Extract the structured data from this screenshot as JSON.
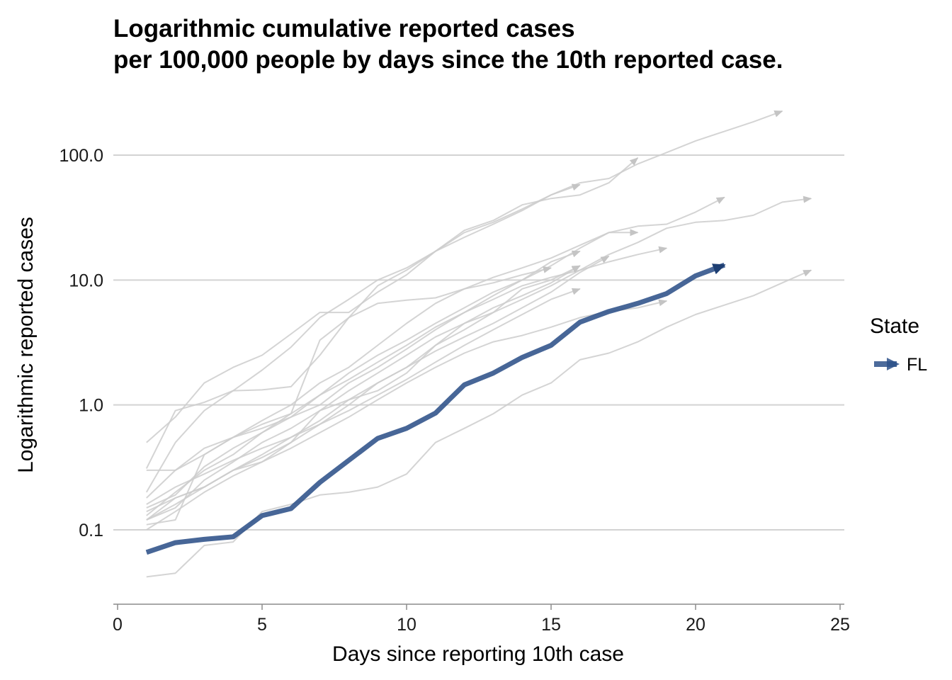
{
  "chart_data": {
    "type": "line",
    "title_lines": [
      "Logarithmic cumulative reported cases",
      "per 100,000 people by days since the 10th reported case."
    ],
    "xlabel": "Days since reporting 10th case",
    "ylabel": "Logarithmic reported cases",
    "x_scale": "linear",
    "y_scale": "log10",
    "xlim": [
      0,
      25
    ],
    "ylim": [
      0.03,
      250
    ],
    "x_ticks": [
      0,
      5,
      10,
      15,
      20,
      25
    ],
    "x_tick_labels": [
      "0",
      "5",
      "10",
      "15",
      "20",
      "25"
    ],
    "y_ticks": [
      0.1,
      1,
      10,
      100
    ],
    "y_tick_labels": [
      "0.1",
      "1.0",
      "10.0",
      "100.0"
    ],
    "grid": "horizontal major lines only",
    "legend": {
      "title": "State",
      "position": "right",
      "entries": [
        "FL"
      ]
    },
    "highlight_color": "#2d5189",
    "background_series_color": "#cccccc",
    "series": [
      {
        "name": "FL",
        "highlight": true,
        "x": [
          1,
          2,
          3,
          4,
          5,
          6,
          7,
          8,
          9,
          10,
          11,
          12,
          13,
          14,
          15,
          16,
          17,
          18,
          19,
          20,
          21
        ],
        "y": [
          0.066,
          0.079,
          0.084,
          0.088,
          0.13,
          0.148,
          0.24,
          0.36,
          0.54,
          0.65,
          0.86,
          1.45,
          1.8,
          2.4,
          3.0,
          4.6,
          5.6,
          6.5,
          7.8,
          10.8,
          13.2
        ]
      },
      {
        "highlight": false,
        "x": [
          1,
          2,
          3,
          4,
          5,
          6,
          7,
          8,
          9,
          10,
          11,
          12,
          13,
          14,
          15,
          16,
          17,
          18,
          19,
          20,
          21,
          22,
          23
        ],
        "y": [
          0.31,
          0.9,
          1.05,
          1.3,
          1.32,
          1.4,
          2.5,
          5.0,
          9.0,
          12.0,
          17.0,
          24.0,
          29.0,
          37.0,
          48.0,
          60.0,
          65.0,
          85.0,
          105.0,
          130.0,
          155.0,
          185.0,
          225.0
        ]
      },
      {
        "highlight": false,
        "x": [
          1,
          2,
          3,
          4,
          5,
          6,
          7,
          8,
          9,
          10,
          11,
          12,
          13,
          14,
          15,
          16,
          17,
          18
        ],
        "y": [
          0.2,
          0.5,
          0.9,
          1.3,
          1.9,
          2.9,
          5.0,
          7.0,
          10.0,
          12.5,
          17.0,
          25.0,
          30.0,
          40.0,
          45.0,
          48.0,
          60.0,
          95.0
        ]
      },
      {
        "highlight": false,
        "x": [
          1,
          2,
          3,
          4,
          5,
          6,
          7,
          8,
          9,
          10,
          11,
          12,
          13,
          14,
          15,
          16
        ],
        "y": [
          0.5,
          0.8,
          1.5,
          2.0,
          2.5,
          3.7,
          5.5,
          5.5,
          8.0,
          11.0,
          17.0,
          22.0,
          28.0,
          36.0,
          48.0,
          58.0
        ]
      },
      {
        "highlight": false,
        "x": [
          1,
          2,
          3,
          4,
          5,
          6,
          7,
          8,
          9,
          10,
          11,
          12,
          13,
          14,
          15,
          16,
          17,
          18,
          19,
          20,
          21,
          22,
          23,
          24
        ],
        "y": [
          0.12,
          0.18,
          0.22,
          0.3,
          0.38,
          0.5,
          0.7,
          1.0,
          1.5,
          2.0,
          3.0,
          4.0,
          5.5,
          7.0,
          9.0,
          12.0,
          16.0,
          20.0,
          26.0,
          29.0,
          30.0,
          33.0,
          42.0,
          45.0
        ]
      },
      {
        "highlight": false,
        "x": [
          1,
          2,
          3,
          4,
          5,
          6,
          7,
          8,
          9,
          10,
          11,
          12,
          13,
          14,
          15,
          16,
          17,
          18,
          19,
          20,
          21
        ],
        "y": [
          0.13,
          0.2,
          0.3,
          0.4,
          0.6,
          0.8,
          1.2,
          1.8,
          2.5,
          3.3,
          4.5,
          6.0,
          8.0,
          10.0,
          13.0,
          18.0,
          24.0,
          27.0,
          28.0,
          35.0,
          46.0
        ]
      },
      {
        "highlight": false,
        "x": [
          1,
          2,
          3,
          4,
          5,
          6,
          7,
          8,
          9,
          10,
          11,
          12,
          13,
          14,
          15,
          16,
          17,
          18
        ],
        "y": [
          0.3,
          0.3,
          0.4,
          0.55,
          0.75,
          1.0,
          1.5,
          2.0,
          3.0,
          4.5,
          6.5,
          8.5,
          10.5,
          12.5,
          15.0,
          19.0,
          24.0,
          24.0
        ]
      },
      {
        "highlight": false,
        "x": [
          1,
          2,
          3,
          4,
          5,
          6,
          7,
          8,
          9,
          10,
          11,
          12,
          13,
          14,
          15,
          16,
          17,
          18,
          19
        ],
        "y": [
          0.15,
          0.19,
          0.32,
          0.45,
          0.6,
          0.85,
          1.2,
          1.6,
          2.2,
          3.0,
          4.2,
          5.5,
          7.0,
          9.0,
          10.5,
          12.0,
          14.0,
          16.0,
          18.0
        ]
      },
      {
        "highlight": false,
        "x": [
          1,
          2,
          3,
          4,
          5,
          6,
          7,
          8,
          9,
          10,
          11,
          12,
          13,
          14,
          15,
          16
        ],
        "y": [
          0.18,
          0.3,
          0.45,
          0.55,
          0.65,
          0.8,
          1.0,
          1.5,
          2.0,
          2.8,
          4.0,
          5.5,
          7.5,
          10.0,
          14.0,
          17.0
        ]
      },
      {
        "highlight": false,
        "x": [
          1,
          2,
          3,
          4,
          5,
          6,
          7,
          8,
          9,
          10,
          11,
          12,
          13,
          14,
          15,
          16
        ],
        "y": [
          0.12,
          0.15,
          0.25,
          0.35,
          0.5,
          0.65,
          0.9,
          1.3,
          1.8,
          2.5,
          3.5,
          4.5,
          6.0,
          7.5,
          9.5,
          13.0
        ]
      },
      {
        "highlight": false,
        "x": [
          1,
          2,
          3,
          4,
          5,
          6,
          7,
          8,
          9,
          10,
          11,
          12,
          13,
          14,
          15,
          16
        ],
        "y": [
          0.16,
          0.22,
          0.28,
          0.36,
          0.45,
          0.55,
          0.7,
          0.9,
          1.2,
          1.6,
          2.2,
          3.0,
          4.0,
          5.3,
          7.0,
          8.5
        ]
      },
      {
        "highlight": false,
        "x": [
          1,
          2,
          3,
          4,
          5,
          6,
          7,
          8,
          9,
          10,
          11,
          12,
          13,
          14,
          15,
          16,
          17,
          18,
          19
        ],
        "y": [
          0.1,
          0.14,
          0.2,
          0.27,
          0.35,
          0.45,
          0.6,
          0.8,
          1.1,
          1.5,
          2.0,
          2.6,
          3.2,
          3.6,
          4.2,
          5.0,
          5.6,
          6.0,
          6.8
        ]
      },
      {
        "highlight": false,
        "x": [
          1,
          2,
          3,
          4,
          5,
          6,
          7,
          8,
          9,
          10,
          11,
          12,
          13,
          14,
          15,
          16,
          17,
          18,
          19,
          20,
          21,
          22,
          23,
          24
        ],
        "y": [
          0.042,
          0.045,
          0.075,
          0.08,
          0.14,
          0.16,
          0.19,
          0.2,
          0.22,
          0.28,
          0.5,
          0.65,
          0.85,
          1.2,
          1.5,
          2.3,
          2.6,
          3.2,
          4.2,
          5.3,
          6.3,
          7.5,
          9.5,
          12.0
        ]
      },
      {
        "highlight": false,
        "x": [
          1,
          2,
          3,
          4,
          5,
          6,
          7,
          8,
          9,
          10,
          11,
          12,
          13,
          14,
          15
        ],
        "y": [
          0.11,
          0.12,
          0.4,
          0.55,
          0.7,
          0.85,
          3.3,
          5.0,
          6.5,
          6.9,
          7.2,
          8.5,
          9.5,
          11.0,
          12.5
        ]
      },
      {
        "highlight": false,
        "x": [
          1,
          2,
          3,
          4,
          5,
          6,
          7,
          8,
          9,
          10,
          11,
          12,
          13,
          14,
          15,
          16
        ],
        "y": [
          0.14,
          0.18,
          0.22,
          0.3,
          0.35,
          0.5,
          0.9,
          1.1,
          1.3,
          1.8,
          3.0,
          4.5,
          5.5,
          8.5,
          10.0,
          13.0
        ]
      },
      {
        "highlight": false,
        "x": [
          1,
          2,
          3,
          4,
          5,
          6,
          7,
          8,
          9,
          10,
          11,
          12,
          13,
          14,
          15,
          16,
          17
        ],
        "y": [
          0.12,
          0.16,
          0.22,
          0.3,
          0.4,
          0.55,
          0.75,
          1.1,
          1.5,
          2.0,
          2.7,
          3.5,
          4.5,
          6.0,
          8.0,
          11.5,
          15.5
        ]
      }
    ]
  }
}
